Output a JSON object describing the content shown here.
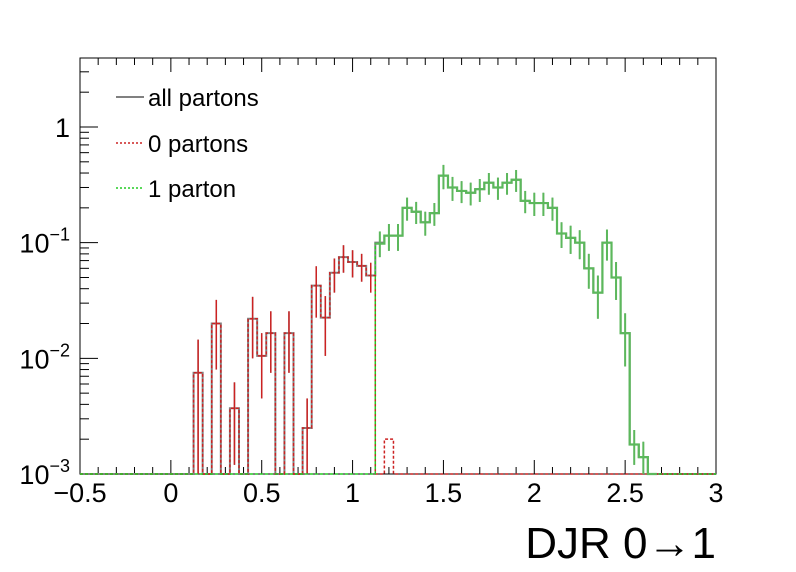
{
  "chart_data": {
    "type": "histogram",
    "xlabel": "DJR 0→1",
    "ylabel": "",
    "xlim": [
      -0.5,
      3.0
    ],
    "ylim": [
      0.001,
      3.5
    ],
    "log_y": true,
    "x_ticks": [
      "−0.5",
      "0",
      "0.5",
      "1",
      "1.5",
      "2",
      "2.5",
      "3"
    ],
    "x_tick_values": [
      -0.5,
      0,
      0.5,
      1,
      1.5,
      2,
      2.5,
      3
    ],
    "y_tick_values": [
      0.001,
      0.01,
      0.1,
      1
    ],
    "y_ticks": [
      {
        "base": "10",
        "exp": "−3"
      },
      {
        "base": "10",
        "exp": "−2"
      },
      {
        "base": "10",
        "exp": "−1"
      },
      {
        "base": "1",
        "exp": ""
      }
    ],
    "bin_edges_start": 0.125,
    "bin_width": 0.05,
    "legend": {
      "position": "top-left",
      "entries": [
        {
          "label": "all partons",
          "color": "#808080",
          "style": "solid"
        },
        {
          "label": "0 partons",
          "color": "#cc2222",
          "style": "dotted"
        },
        {
          "label": "1 parton",
          "color": "#22cc22",
          "style": "dotted"
        }
      ]
    },
    "series": [
      {
        "name": "all partons",
        "color": "#808080",
        "values": [
          0.0075,
          0.001,
          0.02,
          0.001,
          0.0037,
          0.001,
          0.022,
          0.0105,
          0.0165,
          0.001,
          0.0165,
          0.001,
          0.0025,
          0.0425,
          0.0225,
          0.055,
          0.075,
          0.068,
          0.063,
          0.052,
          0.1,
          0.115,
          0.115,
          0.2,
          0.185,
          0.15,
          0.18,
          0.38,
          0.3,
          0.28,
          0.27,
          0.29,
          0.33,
          0.3,
          0.33,
          0.35,
          0.23,
          0.22,
          0.22,
          0.2,
          0.12,
          0.11,
          0.1,
          0.06,
          0.037,
          0.1,
          0.05,
          0.0165,
          0.0018,
          0.0014,
          0.001
        ],
        "errors": [
          0.007,
          0.0,
          0.012,
          0.0,
          0.0025,
          0.0,
          0.012,
          0.006,
          0.009,
          0.0,
          0.009,
          0.0,
          0.002,
          0.02,
          0.012,
          0.018,
          0.02,
          0.018,
          0.017,
          0.015,
          0.025,
          0.03,
          0.03,
          0.045,
          0.04,
          0.035,
          0.04,
          0.09,
          0.07,
          0.06,
          0.06,
          0.065,
          0.07,
          0.065,
          0.07,
          0.075,
          0.05,
          0.05,
          0.05,
          0.045,
          0.03,
          0.03,
          0.028,
          0.02,
          0.015,
          0.03,
          0.018,
          0.008,
          0.0006,
          0.0005,
          0.0
        ]
      },
      {
        "name": "0 partons",
        "color": "#cc2222",
        "values": [
          0.0075,
          0.001,
          0.02,
          0.001,
          0.0037,
          0.001,
          0.022,
          0.0105,
          0.0165,
          0.001,
          0.0165,
          0.001,
          0.0025,
          0.0425,
          0.0225,
          0.055,
          0.075,
          0.068,
          0.063,
          0.052,
          0.001,
          0.002,
          0.001
        ],
        "errors": [
          0.007,
          0.0,
          0.012,
          0.0,
          0.0025,
          0.0,
          0.012,
          0.006,
          0.009,
          0.0,
          0.009,
          0.0,
          0.002,
          0.02,
          0.012,
          0.018,
          0.02,
          0.018,
          0.017,
          0.015,
          0.0,
          0.0,
          0.0
        ]
      },
      {
        "name": "1 parton",
        "color": "#22cc22",
        "start_bin": 20,
        "values": [
          0.098,
          0.115,
          0.115,
          0.2,
          0.185,
          0.15,
          0.18,
          0.38,
          0.3,
          0.28,
          0.27,
          0.29,
          0.33,
          0.3,
          0.33,
          0.35,
          0.23,
          0.22,
          0.22,
          0.2,
          0.12,
          0.11,
          0.1,
          0.06,
          0.037,
          0.1,
          0.05,
          0.0165,
          0.0018,
          0.0014,
          0.001
        ]
      }
    ]
  }
}
